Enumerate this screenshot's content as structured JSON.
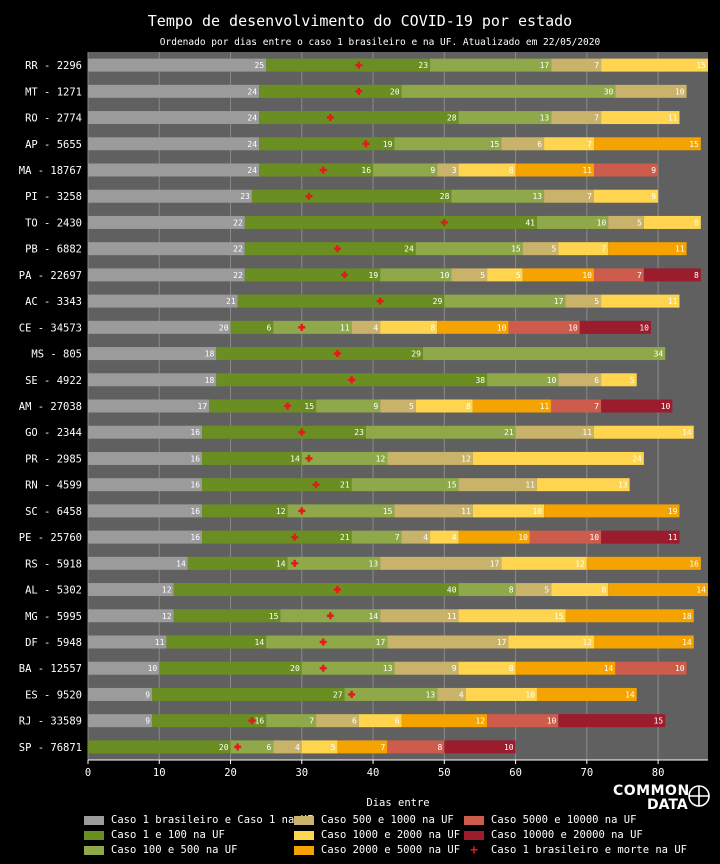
{
  "title": "Tempo de desenvolvimento do COVID-19 por estado",
  "subtitle": "Ordenado por dias entre o caso 1 brasileiro e na UF. Atualizado em 22/05/2020",
  "logo": {
    "line1": "COMMON",
    "line2": "DATA",
    "icon": "crosshair-circle-icon"
  },
  "chart_data": {
    "type": "bar",
    "orientation": "horizontal-stacked",
    "xlabel": "Dias entre",
    "xlim": [
      0,
      87
    ],
    "xticks": [
      0,
      10,
      20,
      30,
      40,
      50,
      60,
      70,
      80
    ],
    "grid": true,
    "segment_names": [
      "Caso 1 brasileiro e Caso 1 na UF",
      "Caso 1 e 100 na UF",
      "Caso 100 e 500 na UF",
      "Caso 500 e 1000 na UF",
      "Caso 1000 e 2000 na UF",
      "Caso 2000 e 5000 na UF",
      "Caso 5000 e 10000 na UF",
      "Caso 10000 e 20000 na UF"
    ],
    "marker_name": "Caso 1 brasileiro e morte na UF",
    "colors": [
      "#9b9b9b",
      "#6b8e23",
      "#8fa84a",
      "#c9b36a",
      "#ffd54f",
      "#f5a300",
      "#cd5c4c",
      "#9b1c2c"
    ],
    "marker_color": "#e31a1c",
    "rows": [
      {
        "label": "RR - 2296",
        "segments": [
          25,
          23,
          17,
          7,
          15,
          0,
          0,
          0
        ],
        "death": 38
      },
      {
        "label": "MT - 1271",
        "segments": [
          24,
          20,
          30,
          10,
          0,
          0,
          0,
          0
        ],
        "death": 38
      },
      {
        "label": "RO - 2774",
        "segments": [
          24,
          28,
          13,
          7,
          11,
          0,
          0,
          0
        ],
        "death": 34
      },
      {
        "label": "AP - 5655",
        "segments": [
          24,
          19,
          15,
          6,
          7,
          15,
          0,
          0
        ],
        "death": 39
      },
      {
        "label": "MA - 18767",
        "segments": [
          24,
          16,
          9,
          3,
          8,
          11,
          9,
          0
        ],
        "death": 33
      },
      {
        "label": "PI - 3258",
        "segments": [
          23,
          28,
          13,
          7,
          9,
          0,
          0,
          0
        ],
        "death": 31
      },
      {
        "label": "TO - 2430",
        "segments": [
          22,
          41,
          10,
          5,
          8,
          0,
          0,
          0
        ],
        "death": 50
      },
      {
        "label": "PB - 6882",
        "segments": [
          22,
          24,
          15,
          5,
          7,
          11,
          0,
          0
        ],
        "death": 35
      },
      {
        "label": "PA - 22697",
        "segments": [
          22,
          19,
          10,
          5,
          5,
          10,
          7,
          8
        ],
        "death": 36
      },
      {
        "label": "AC - 3343",
        "segments": [
          21,
          29,
          17,
          5,
          11,
          0,
          0,
          0
        ],
        "death": 41
      },
      {
        "label": "CE - 34573",
        "segments": [
          20,
          6,
          11,
          4,
          8,
          10,
          10,
          10
        ],
        "death": 30
      },
      {
        "label": "MS - 805",
        "segments": [
          18,
          29,
          34,
          0,
          0,
          0,
          0,
          0
        ],
        "death": 35
      },
      {
        "label": "SE - 4922",
        "segments": [
          18,
          38,
          10,
          6,
          5,
          0,
          0,
          0
        ],
        "death": 37
      },
      {
        "label": "AM - 27038",
        "segments": [
          17,
          15,
          9,
          5,
          8,
          11,
          7,
          10
        ],
        "death": 28
      },
      {
        "label": "GO - 2344",
        "segments": [
          16,
          23,
          21,
          11,
          14,
          0,
          0,
          0
        ],
        "death": 30
      },
      {
        "label": "PR - 2985",
        "segments": [
          16,
          14,
          12,
          12,
          24,
          0,
          0,
          0
        ],
        "death": 31
      },
      {
        "label": "RN - 4599",
        "segments": [
          16,
          21,
          15,
          11,
          13,
          0,
          0,
          0
        ],
        "death": 32
      },
      {
        "label": "SC - 6458",
        "segments": [
          16,
          12,
          15,
          11,
          10,
          19,
          0,
          0
        ],
        "death": 30
      },
      {
        "label": "PE - 25760",
        "segments": [
          16,
          21,
          7,
          4,
          4,
          10,
          10,
          11
        ],
        "death": 29
      },
      {
        "label": "RS - 5918",
        "segments": [
          14,
          14,
          13,
          17,
          12,
          16,
          0,
          0
        ],
        "death": 29
      },
      {
        "label": "AL - 5302",
        "segments": [
          12,
          40,
          8,
          5,
          8,
          14,
          0,
          0
        ],
        "death": 35
      },
      {
        "label": "MG - 5995",
        "segments": [
          12,
          15,
          14,
          11,
          15,
          18,
          0,
          0
        ],
        "death": 34
      },
      {
        "label": "DF - 5948",
        "segments": [
          11,
          14,
          17,
          17,
          12,
          14,
          0,
          0
        ],
        "death": 33
      },
      {
        "label": "BA - 12557",
        "segments": [
          10,
          20,
          13,
          9,
          8,
          14,
          10,
          0
        ],
        "death": 33
      },
      {
        "label": "ES - 9520",
        "segments": [
          9,
          27,
          13,
          4,
          10,
          14,
          0,
          0
        ],
        "death": 37
      },
      {
        "label": "RJ - 33589",
        "segments": [
          9,
          16,
          7,
          6,
          6,
          12,
          10,
          15
        ],
        "death": 23
      },
      {
        "label": "SP - 76871",
        "segments": [
          0,
          20,
          6,
          4,
          5,
          7,
          8,
          10
        ],
        "death": 21
      }
    ]
  }
}
